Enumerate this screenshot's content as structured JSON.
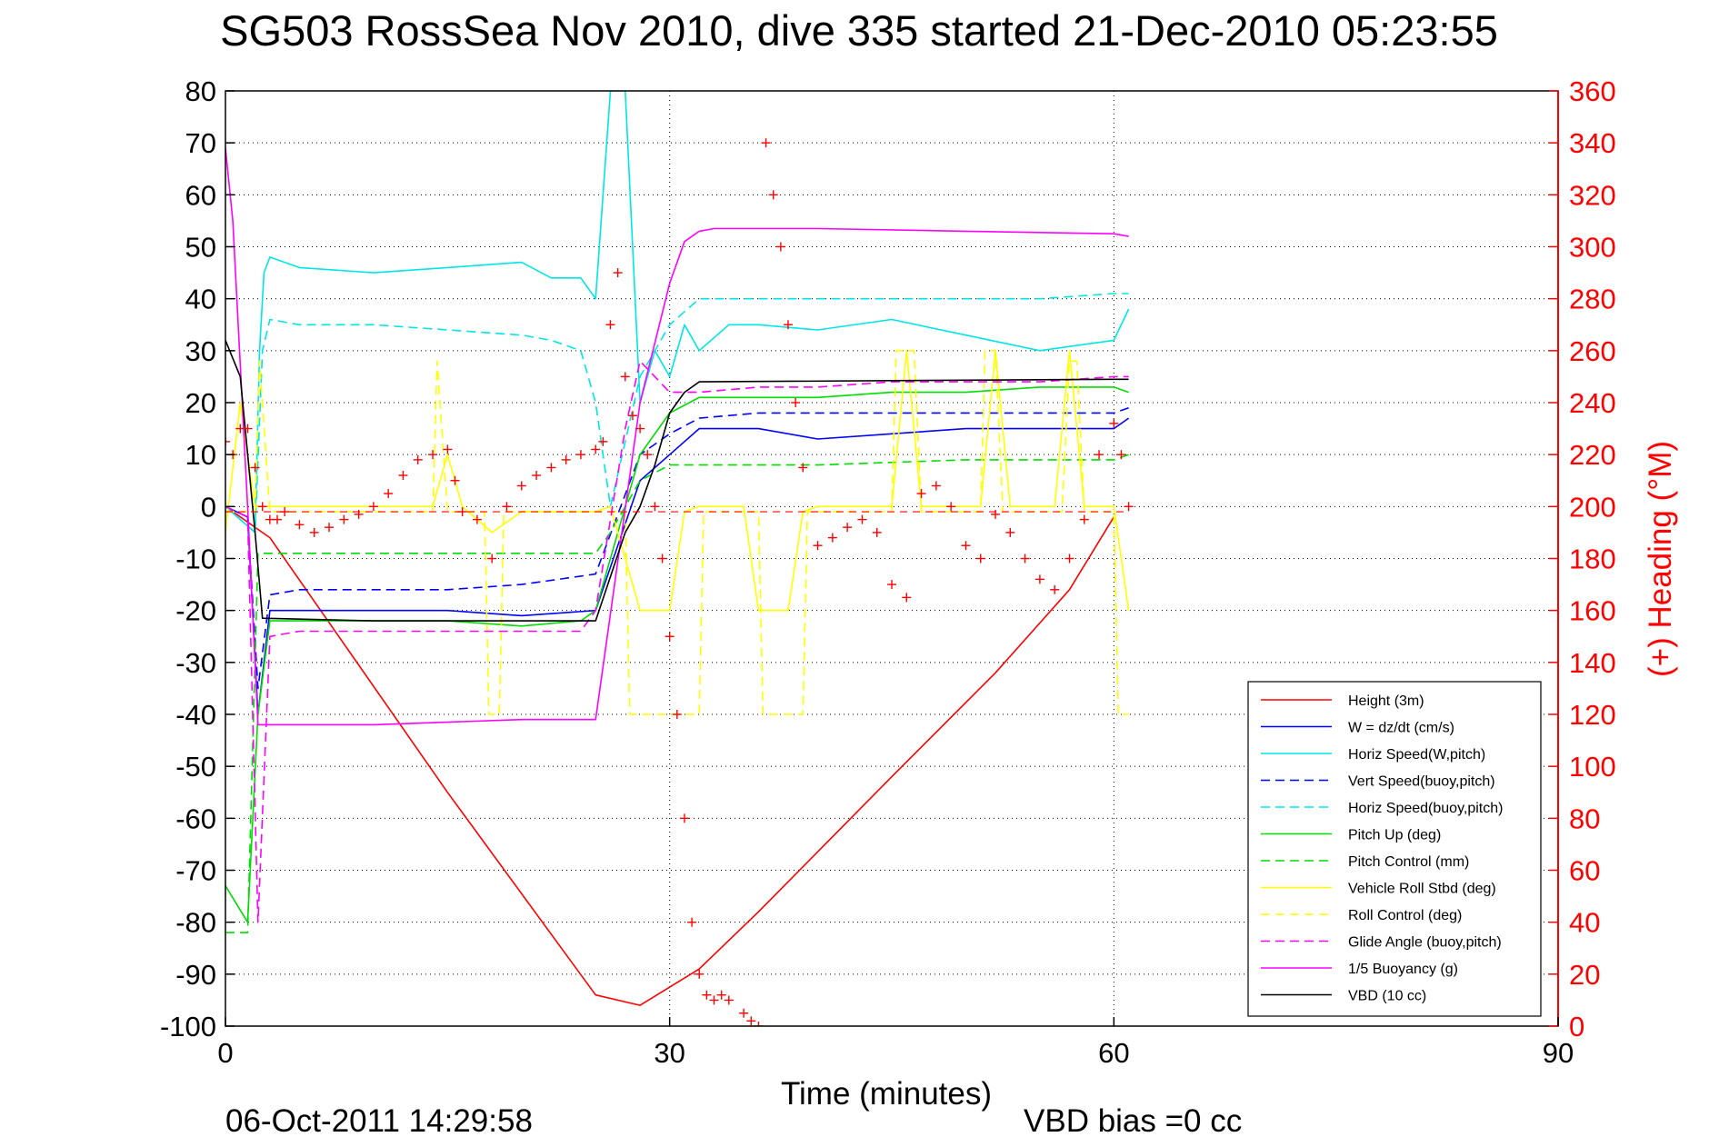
{
  "chart_data": {
    "type": "line",
    "title": "SG503 RossSea Nov 2010, dive 335 started 21-Dec-2010 05:23:55",
    "xlabel": "Time (minutes)",
    "ylabel": "",
    "y2label": "(+) Heading (°M)",
    "xlim": [
      0,
      90
    ],
    "ylim": [
      -100,
      80
    ],
    "y2lim": [
      0,
      360
    ],
    "xticks": [
      "0",
      "30",
      "60",
      "90"
    ],
    "yticks": [
      "80",
      "70",
      "60",
      "50",
      "40",
      "30",
      "20",
      "10",
      "0",
      "-10",
      "-20",
      "-30",
      "-40",
      "-50",
      "-60",
      "-70",
      "-80",
      "-90",
      "-100"
    ],
    "y2ticks": [
      "360",
      "340",
      "320",
      "300",
      "280",
      "260",
      "240",
      "220",
      "200",
      "180",
      "160",
      "140",
      "120",
      "100",
      "80",
      "60",
      "40",
      "20",
      "0"
    ],
    "grid": "dotted",
    "legend_position": "bottom-right",
    "footer_left": "06-Oct-2011 14:29:58",
    "footer_right": "VBD bias =0 cc",
    "series": [
      {
        "name": "Height (3m)",
        "color": "#ff0000",
        "style": "solid",
        "x": [
          0,
          3,
          15,
          25,
          28,
          32,
          36,
          45,
          52,
          57,
          60
        ],
        "y": [
          0,
          -6,
          -55,
          -94,
          -96,
          -89,
          -78,
          -52,
          -32,
          -16,
          -2
        ]
      },
      {
        "name": "W = dz/dt (cm/s)",
        "color": "#0000ff",
        "style": "solid",
        "x": [
          0,
          1.5,
          2.2,
          3,
          5,
          10,
          15,
          20,
          25,
          28,
          30,
          32,
          36,
          40,
          45,
          50,
          55,
          60,
          61
        ],
        "y": [
          0,
          -2,
          -40,
          -20,
          -20,
          -20,
          -20,
          -21,
          -20,
          5,
          10,
          15,
          15,
          13,
          14,
          15,
          15,
          15,
          17
        ]
      },
      {
        "name": "Horiz Speed(W,pitch)",
        "color": "#00e5e5",
        "style": "solid",
        "x": [
          0,
          2,
          2.3,
          2.6,
          3,
          5,
          10,
          15,
          20,
          22,
          24,
          25,
          26,
          27,
          28,
          29,
          30,
          31,
          32,
          34,
          36,
          40,
          45,
          50,
          55,
          60,
          61
        ],
        "y": [
          0,
          -5,
          30,
          45,
          48,
          46,
          45,
          46,
          47,
          44,
          44,
          40,
          80,
          80,
          20,
          30,
          25,
          35,
          30,
          35,
          35,
          34,
          36,
          33,
          30,
          32,
          38
        ]
      },
      {
        "name": "Vert Speed(buoy,pitch)",
        "color": "#0000ff",
        "style": "dashed",
        "x": [
          0,
          1.5,
          2.2,
          3,
          5,
          10,
          15,
          20,
          25,
          28,
          30,
          32,
          36,
          40,
          45,
          50,
          55,
          60,
          61
        ],
        "y": [
          0,
          -2,
          -35,
          -17,
          -16,
          -16,
          -16,
          -15,
          -13,
          10,
          14,
          17,
          18,
          18,
          18,
          18,
          18,
          18,
          19
        ]
      },
      {
        "name": "Horiz Speed(buoy,pitch)",
        "color": "#00e5e5",
        "style": "dashed",
        "x": [
          0,
          2,
          2.5,
          3,
          5,
          10,
          15,
          20,
          22,
          24,
          25,
          26,
          28,
          30,
          32,
          35,
          40,
          45,
          50,
          55,
          60,
          61
        ],
        "y": [
          0,
          -5,
          30,
          36,
          35,
          35,
          34,
          33,
          32,
          30,
          20,
          0,
          25,
          35,
          40,
          40,
          40,
          40,
          40,
          40,
          41,
          41
        ]
      },
      {
        "name": "Pitch Up (deg)",
        "color": "#00dd00",
        "style": "solid",
        "x": [
          0,
          1.5,
          2.2,
          3,
          5,
          10,
          15,
          20,
          24,
          25,
          28,
          30,
          32,
          36,
          40,
          45,
          50,
          55,
          60,
          61
        ],
        "y": [
          -73,
          -80,
          -40,
          -22,
          -22,
          -22,
          -22,
          -23,
          -22,
          -20,
          10,
          18,
          21,
          21,
          21,
          22,
          22,
          23,
          23,
          22
        ]
      },
      {
        "name": "Pitch Control (mm)",
        "color": "#00dd00",
        "style": "dashed",
        "x": [
          0,
          1.5,
          2.2,
          3,
          5,
          10,
          15,
          20,
          25,
          26,
          28,
          30,
          32,
          40,
          50,
          60,
          61
        ],
        "y": [
          -82,
          -82,
          -9,
          -9,
          -9,
          -9,
          -9,
          -9,
          -9,
          -5,
          5,
          8,
          8,
          8,
          9,
          9,
          10
        ]
      },
      {
        "name": "Vehicle Roll Stbd (deg)",
        "color": "#ffff00",
        "style": "solid",
        "x": [
          0,
          1,
          2,
          3,
          10,
          14,
          15,
          16,
          18,
          20,
          25,
          26,
          28,
          30,
          31,
          32,
          35,
          36,
          38,
          39,
          40,
          45,
          46,
          47,
          48,
          51,
          52,
          53,
          56,
          57,
          58,
          59,
          60,
          61
        ],
        "y": [
          -5,
          20,
          0,
          0,
          0,
          0,
          10,
          0,
          -5,
          -1,
          -1,
          0,
          -20,
          -20,
          -1,
          0,
          0,
          -20,
          -20,
          -1,
          0,
          0,
          30,
          0,
          0,
          0,
          30,
          0,
          0,
          30,
          0,
          0,
          0,
          -20
        ]
      },
      {
        "name": "Roll Control (deg)",
        "color": "#ffff00",
        "style": "dashed",
        "x": [
          0,
          2,
          2.3,
          3,
          14,
          14.3,
          15,
          17.5,
          17.8,
          18.5,
          18.8,
          27,
          27.3,
          32,
          32.3,
          36,
          36.3,
          39,
          39.3,
          45,
          45.3,
          46.5,
          47,
          51,
          51.3,
          52,
          52.5,
          56.5,
          57,
          57.5,
          58,
          60,
          60.3,
          61
        ],
        "y": [
          -1,
          -1,
          28,
          -1,
          -1,
          28,
          -1,
          -1,
          -40,
          -40,
          -1,
          -1,
          -40,
          -40,
          -1,
          -1,
          -40,
          -40,
          -1,
          -1,
          30,
          30,
          -1,
          -1,
          30,
          30,
          -1,
          -1,
          28,
          28,
          -1,
          -1,
          -40,
          -40
        ]
      },
      {
        "name": "Glide Angle (buoy,pitch)",
        "color": "#ff00ff",
        "style": "dashed",
        "x": [
          0,
          1.5,
          2.2,
          3,
          5,
          10,
          15,
          20,
          24,
          25,
          27,
          28,
          30,
          32,
          36,
          40,
          45,
          50,
          55,
          60,
          61
        ],
        "y": [
          0,
          -2,
          -80,
          -25,
          -24,
          -24,
          -24,
          -24,
          -24,
          -20,
          15,
          28,
          22,
          22,
          23,
          23,
          24,
          24,
          24,
          25,
          25
        ]
      },
      {
        "name": "1/5 Buoyancy (g)",
        "color": "#ff00ff",
        "style": "solid",
        "x": [
          0,
          0.5,
          1.5,
          2.2,
          3,
          10,
          20,
          25,
          28,
          30,
          31,
          32,
          33,
          40,
          50,
          60,
          61
        ],
        "y": [
          69,
          55,
          0,
          -42,
          -42,
          -42,
          -41,
          -41,
          20,
          43,
          51,
          53,
          53.5,
          53.5,
          53,
          52.5,
          52
        ]
      },
      {
        "name": "VBD (10 cc)",
        "color": "#000000",
        "style": "solid",
        "x": [
          0,
          1,
          2,
          2.5,
          10,
          20,
          24.5,
          25,
          27,
          28,
          29,
          30,
          30.5,
          31,
          31.5,
          32,
          60,
          61
        ],
        "y": [
          32,
          25,
          -5,
          -21.5,
          -22,
          -22,
          -22,
          -22,
          -5,
          0,
          8,
          18,
          20,
          22,
          23,
          24,
          24.5,
          24.5
        ]
      }
    ],
    "heading": {
      "name": "(+) Heading (°M)",
      "color": "#ff0000",
      "axis": "right",
      "marker": "+",
      "reference_line": 198,
      "x": [
        0,
        0.5,
        1,
        1.5,
        2,
        2.5,
        3,
        3.5,
        4,
        5,
        6,
        7,
        8,
        9,
        10,
        11,
        12,
        13,
        14,
        15,
        15.5,
        16,
        17,
        18,
        19,
        20,
        21,
        22,
        23,
        24,
        25,
        25.5,
        26,
        26.5,
        27,
        27.5,
        28,
        28.5,
        29,
        29.5,
        30,
        30.5,
        31,
        31.5,
        32,
        32.5,
        33,
        33.5,
        34,
        35,
        35.5,
        36,
        36.5,
        37,
        37.5,
        38,
        38.5,
        39,
        40,
        41,
        42,
        43,
        44,
        45,
        46,
        47,
        48,
        49,
        50,
        51,
        52,
        53,
        54,
        55,
        56,
        57,
        58,
        59,
        60,
        60.5,
        61
      ],
      "y": [
        225,
        220,
        230,
        230,
        215,
        200,
        195,
        195,
        198,
        193,
        190,
        192,
        195,
        197,
        200,
        205,
        212,
        218,
        220,
        222,
        210,
        198,
        195,
        180,
        200,
        208,
        212,
        215,
        218,
        220,
        222,
        225,
        270,
        290,
        250,
        235,
        230,
        220,
        200,
        180,
        150,
        120,
        80,
        40,
        20,
        12,
        10,
        12,
        10,
        5,
        2,
        0,
        340,
        320,
        300,
        270,
        240,
        215,
        185,
        188,
        192,
        195,
        190,
        170,
        165,
        205,
        208,
        200,
        185,
        180,
        197,
        190,
        180,
        172,
        168,
        180,
        195,
        220,
        232,
        220,
        200
      ]
    }
  }
}
